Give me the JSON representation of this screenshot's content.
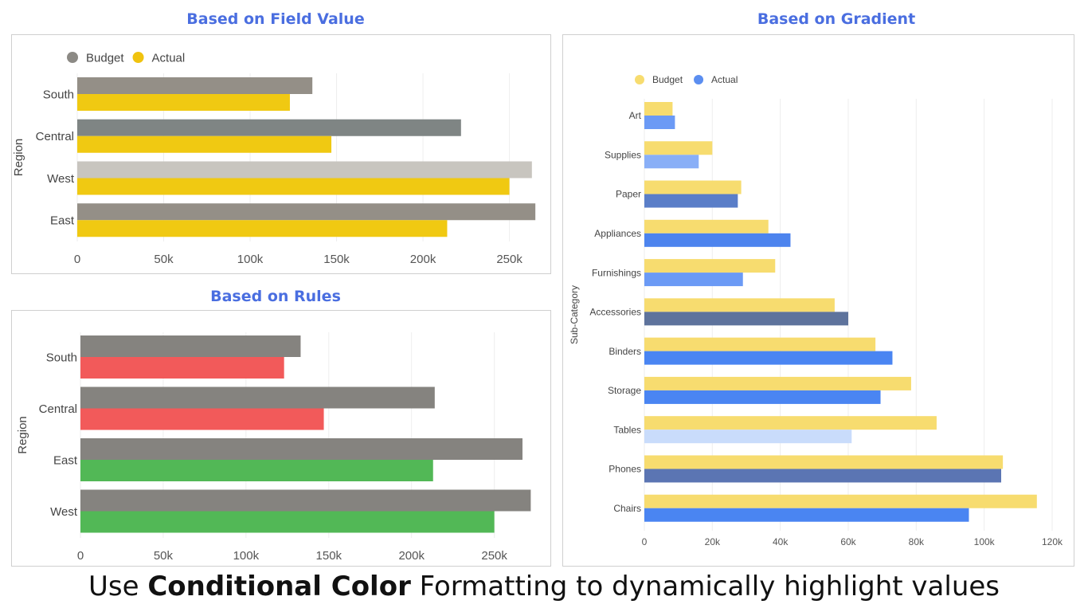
{
  "caption": {
    "prefix": "Use ",
    "highlight": "Conditional Color",
    "suffix": " Formatting to dynamically highlight values"
  },
  "chart_data": [
    {
      "id": "field",
      "type": "bar",
      "orientation": "horizontal",
      "title": "Based on Field Value",
      "ylabel": "Region",
      "categories": [
        "South",
        "Central",
        "West",
        "East"
      ],
      "series": [
        {
          "name": "Budget",
          "legend_color": "#8c8a85",
          "values": [
            136000,
            222000,
            263000,
            265000
          ],
          "colors": [
            "#948f87",
            "#7f8584",
            "#c8c5bf",
            "#948f87"
          ]
        },
        {
          "name": "Actual",
          "legend_color": "#f0c30f",
          "values": [
            123000,
            147000,
            250000,
            214000
          ],
          "colors": [
            "#f0c912",
            "#f0c912",
            "#f0c912",
            "#f0c912"
          ]
        }
      ],
      "xlim": [
        0,
        270000
      ],
      "xticks": [
        0,
        50000,
        100000,
        150000,
        200000,
        250000
      ],
      "xtick_labels": [
        "0",
        "50k",
        "100k",
        "150k",
        "200k",
        "250k"
      ],
      "legend": "top-left",
      "grid": true
    },
    {
      "id": "rules",
      "type": "bar",
      "orientation": "horizontal",
      "title": "Based on Rules",
      "ylabel": "Region",
      "categories": [
        "South",
        "Central",
        "East",
        "West"
      ],
      "series": [
        {
          "name": "Budget",
          "values": [
            133000,
            214000,
            267000,
            272000
          ],
          "colors": [
            "#85837f",
            "#85837f",
            "#85837f",
            "#85837f"
          ]
        },
        {
          "name": "Actual",
          "values": [
            123000,
            147000,
            213000,
            250000
          ],
          "colors": [
            "#f25a5a",
            "#f25a5a",
            "#52b856",
            "#52b856"
          ]
        }
      ],
      "xlim": [
        0,
        280000
      ],
      "xticks": [
        0,
        50000,
        100000,
        150000,
        200000,
        250000
      ],
      "xtick_labels": [
        "0",
        "50k",
        "100k",
        "150k",
        "200k",
        "250k"
      ],
      "grid": true
    },
    {
      "id": "gradient",
      "type": "bar",
      "orientation": "horizontal",
      "title": "Based on Gradient",
      "ylabel": "Sub-Category",
      "categories": [
        "Art",
        "Supplies",
        "Paper",
        "Appliances",
        "Furnishings",
        "Accessories",
        "Binders",
        "Storage",
        "Tables",
        "Phones",
        "Chairs"
      ],
      "series": [
        {
          "name": "Budget",
          "legend_color": "#f7dc6f",
          "values": [
            8300,
            20000,
            28500,
            36500,
            38500,
            56000,
            68000,
            78500,
            86000,
            105500,
            115500
          ],
          "colors": [
            "#f7dc6f",
            "#f7dc6f",
            "#f7dc6f",
            "#f7dc6f",
            "#f7dc6f",
            "#f7dc6f",
            "#f7dc6f",
            "#f7dc6f",
            "#f7dc6f",
            "#f7dc6f",
            "#f7dc6f"
          ]
        },
        {
          "name": "Actual",
          "legend_color": "#5b8ef0",
          "values": [
            9000,
            16000,
            27500,
            43000,
            29000,
            60000,
            73000,
            69500,
            61000,
            105000,
            95500
          ],
          "colors": [
            "#6b9af5",
            "#89aff7",
            "#5a7ec8",
            "#4d84ee",
            "#6b9af5",
            "#5e739c",
            "#4a85f2",
            "#4a85f2",
            "#c9dcfb",
            "#5b75b3",
            "#4a85f2"
          ]
        }
      ],
      "xlim": [
        0,
        120000
      ],
      "xticks": [
        0,
        20000,
        40000,
        60000,
        80000,
        100000,
        120000
      ],
      "xtick_labels": [
        "0",
        "20k",
        "40k",
        "60k",
        "80k",
        "100k",
        "120k"
      ],
      "legend": "top-left",
      "grid": true
    }
  ]
}
